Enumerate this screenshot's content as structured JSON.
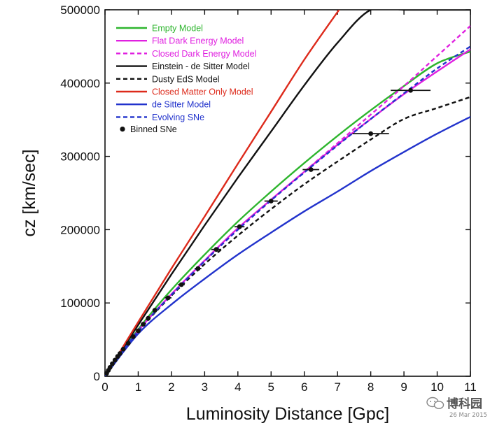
{
  "chart_data": {
    "type": "line",
    "title": "",
    "xlabel": "Luminosity Distance [Gpc]",
    "ylabel": "cz [km/sec]",
    "xlim": [
      0,
      11
    ],
    "ylim": [
      0,
      500000
    ],
    "xticks": [
      0,
      1,
      2,
      3,
      4,
      5,
      6,
      7,
      8,
      9,
      10,
      11
    ],
    "yticks": [
      0,
      100000,
      200000,
      300000,
      400000,
      500000
    ],
    "grid": false,
    "legend_position": "top-left",
    "series": [
      {
        "name": "Empty Model",
        "color": "#2db52d",
        "dash": "solid",
        "x": [
          0,
          1,
          2,
          3,
          4,
          5,
          6,
          7,
          8,
          9,
          10,
          11
        ],
        "y": [
          0,
          64000,
          118000,
          166000,
          211000,
          252000,
          291000,
          328000,
          363000,
          396000,
          427000,
          443000
        ]
      },
      {
        "name": "Flat Dark Energy Model",
        "color": "#e020e0",
        "dash": "solid",
        "x": [
          0,
          1,
          2,
          3,
          4,
          5,
          6,
          7,
          8,
          9,
          10,
          11
        ],
        "y": [
          0,
          62000,
          112000,
          158000,
          202000,
          241000,
          279000,
          316000,
          351000,
          385000,
          416000,
          446000
        ]
      },
      {
        "name": "Closed Dark Energy Model",
        "color": "#e020e0",
        "dash": "dashed",
        "x": [
          0,
          1,
          2,
          3,
          4,
          5,
          6,
          7,
          8,
          9,
          10,
          11
        ],
        "y": [
          0,
          62000,
          111000,
          157000,
          200000,
          240000,
          279000,
          318000,
          357000,
          396000,
          437000,
          478000
        ]
      },
      {
        "name": "Einstein - de Sitter Model",
        "color": "#111111",
        "dash": "solid",
        "x": [
          0,
          1,
          2,
          3,
          4,
          5,
          6,
          7,
          8,
          9,
          10,
          11
        ],
        "y": [
          0,
          70000,
          139000,
          206000,
          271000,
          334000,
          397000,
          455000,
          500000,
          500000,
          500000,
          500000
        ]
      },
      {
        "name": "Dusty EdS Model",
        "color": "#111111",
        "dash": "dashed",
        "x": [
          0,
          1,
          2,
          3,
          4,
          5,
          6,
          7,
          8,
          9,
          10,
          11
        ],
        "y": [
          0,
          61000,
          110000,
          153000,
          192000,
          228000,
          262000,
          293000,
          323000,
          351000,
          366000,
          381000
        ]
      },
      {
        "name": "Closed Matter Only Model",
        "color": "#dd2a1b",
        "dash": "solid",
        "x": [
          0,
          1,
          2,
          3,
          4,
          5,
          6,
          7,
          7.05
        ],
        "y": [
          0,
          74000,
          147000,
          218000,
          290000,
          361000,
          432000,
          497000,
          500000
        ]
      },
      {
        "name": "de Sitter Model",
        "color": "#2233cc",
        "dash": "solid",
        "x": [
          0,
          1,
          2,
          3,
          4,
          5,
          6,
          7,
          8,
          9,
          10,
          11
        ],
        "y": [
          0,
          58000,
          98000,
          133000,
          166000,
          196000,
          225000,
          252000,
          280000,
          306000,
          331000,
          354000
        ]
      },
      {
        "name": "Evolving SNe",
        "color": "#2233cc",
        "dash": "dashed",
        "x": [
          0,
          1,
          2,
          3,
          4,
          5,
          6,
          7,
          8,
          9,
          10,
          11
        ],
        "y": [
          0,
          62000,
          111000,
          157000,
          200000,
          240000,
          278000,
          315000,
          351000,
          386000,
          420000,
          450000
        ]
      }
    ],
    "points": {
      "name": "Binned SNe",
      "color": "#111111",
      "x": [
        0.05,
        0.1,
        0.15,
        0.22,
        0.3,
        0.38,
        0.45,
        0.55,
        0.7,
        0.85,
        1.0,
        1.15,
        1.3,
        1.5,
        1.9,
        2.3,
        2.8,
        3.35,
        4.05,
        5.0,
        6.2,
        8.0,
        9.2
      ],
      "y": [
        4000,
        8000,
        12000,
        17000,
        22000,
        27000,
        31000,
        37000,
        45000,
        54000,
        62000,
        71000,
        79000,
        90000,
        107000,
        125000,
        147000,
        173000,
        204000,
        239000,
        282000,
        331000,
        390000
      ],
      "xerr": [
        0,
        0,
        0,
        0,
        0,
        0,
        0,
        0,
        0,
        0,
        0,
        0,
        0,
        0,
        0.1,
        0.1,
        0.1,
        0.15,
        0.15,
        0.2,
        0.25,
        0.55,
        0.6
      ]
    }
  },
  "watermark": {
    "text": "博科园",
    "date": "26 Mar 2015",
    "logo_icon": "wechat-logo"
  }
}
